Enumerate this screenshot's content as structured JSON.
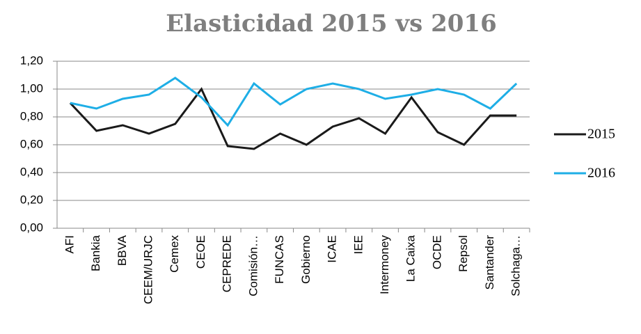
{
  "chart_data": {
    "type": "line",
    "title": "Elasticidad 2015 vs 2016",
    "categories": [
      "AFI",
      "Bankia",
      "BBVA",
      "CEEM/URJC",
      "Cemex",
      "CEOE",
      "CEPREDE",
      "Comisión…",
      "FUNCAS",
      "Gobierno",
      "ICAE",
      "IEE",
      "Intermoney",
      "La Caixa",
      "OCDE",
      "Repsol",
      "Santander",
      "Solchaga…"
    ],
    "series": [
      {
        "name": "2015",
        "color": "#1a1a1a",
        "values": [
          0.9,
          0.7,
          0.74,
          0.68,
          0.75,
          1.0,
          0.59,
          0.57,
          0.68,
          0.6,
          0.73,
          0.79,
          0.68,
          0.94,
          0.69,
          0.6,
          0.81,
          0.81
        ]
      },
      {
        "name": "2016",
        "color": "#1eaee6",
        "values": [
          0.9,
          0.86,
          0.93,
          0.96,
          1.08,
          0.94,
          0.74,
          1.04,
          0.89,
          1.0,
          1.04,
          1.0,
          0.93,
          0.96,
          1.0,
          0.96,
          0.86,
          1.04
        ]
      }
    ],
    "ylim": [
      0,
      1.2
    ],
    "yticks": [
      {
        "value": 0,
        "label": "0,00"
      },
      {
        "value": 0.2,
        "label": "0,20"
      },
      {
        "value": 0.4,
        "label": "0,40"
      },
      {
        "value": 0.6,
        "label": "0,60"
      },
      {
        "value": 0.8,
        "label": "0,80"
      },
      {
        "value": 1.0,
        "label": "1,00"
      },
      {
        "value": 1.2,
        "label": "1,20"
      }
    ],
    "grid": true,
    "legend": "right"
  }
}
